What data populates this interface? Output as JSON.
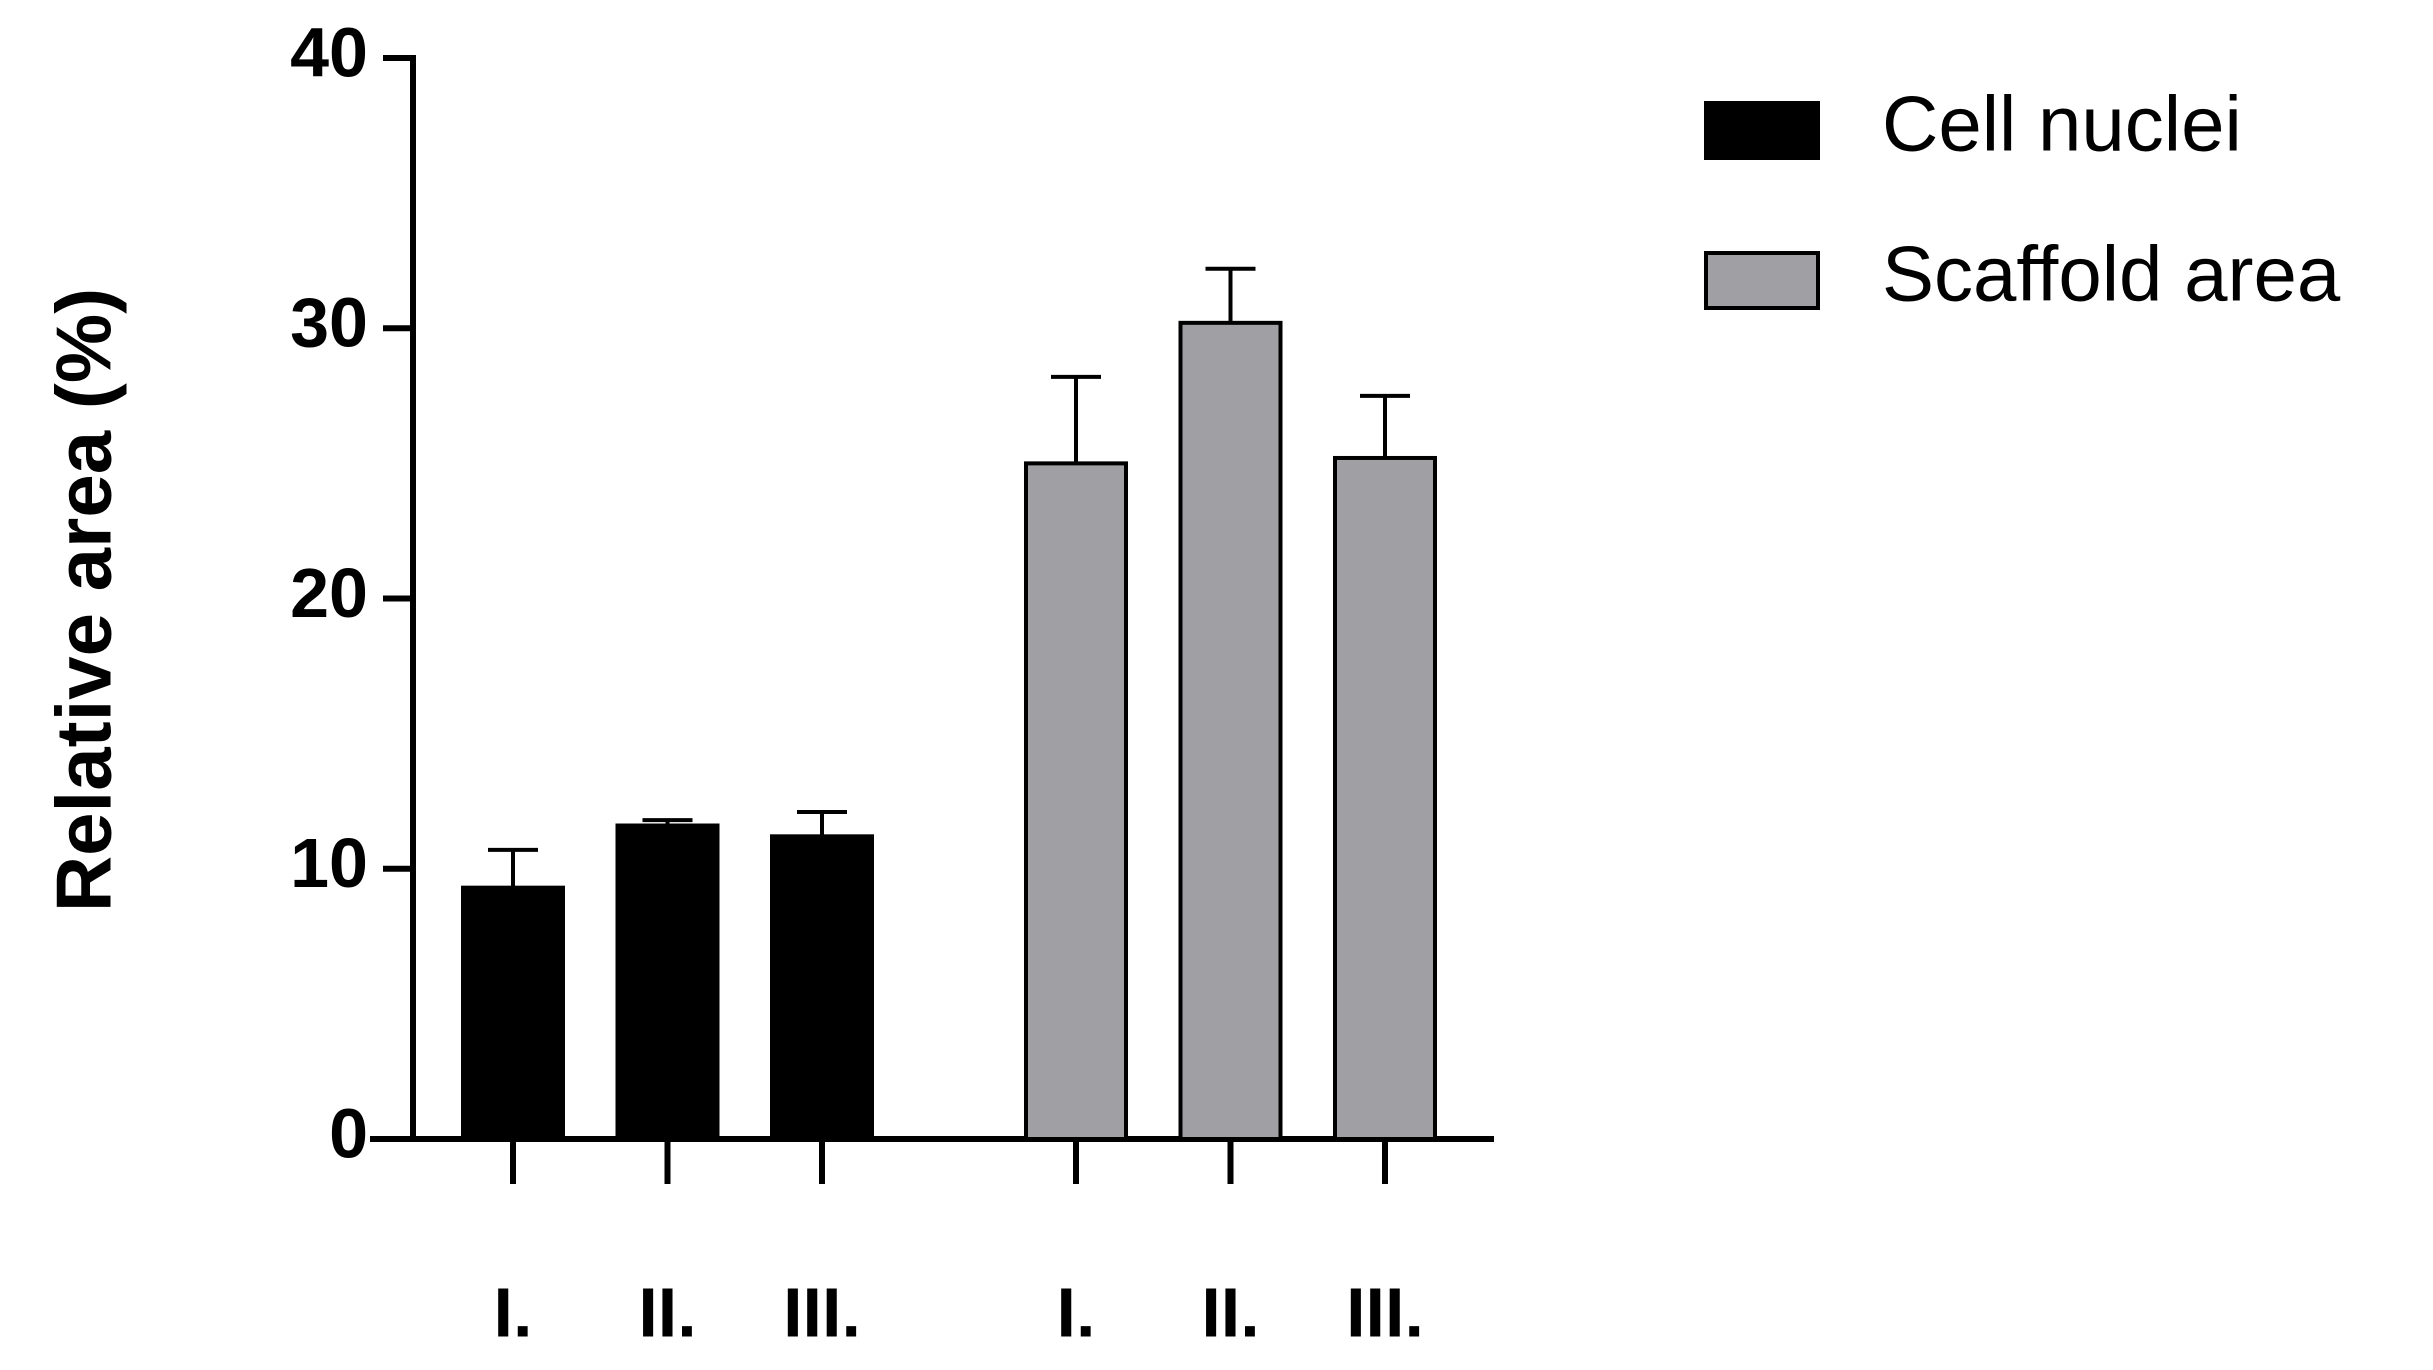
{
  "chart_data": {
    "type": "bar",
    "y_label": "Relative area (%)",
    "categories": [
      "I.",
      "II.",
      "III."
    ],
    "series": [
      {
        "name": "Cell nuclei",
        "color": "#000000",
        "values": [
          9.3,
          11.6,
          11.2
        ],
        "errors": [
          1.4,
          0.2,
          0.9
        ]
      },
      {
        "name": "Scaffold area",
        "color": "#a0a0a4",
        "values": [
          25.0,
          30.2,
          25.2
        ],
        "errors": [
          3.2,
          2.0,
          2.3
        ]
      }
    ],
    "ylim": [
      0,
      40
    ],
    "yticks": [
      0,
      10,
      20,
      30,
      40
    ],
    "grid": false,
    "legend": "top-right"
  }
}
